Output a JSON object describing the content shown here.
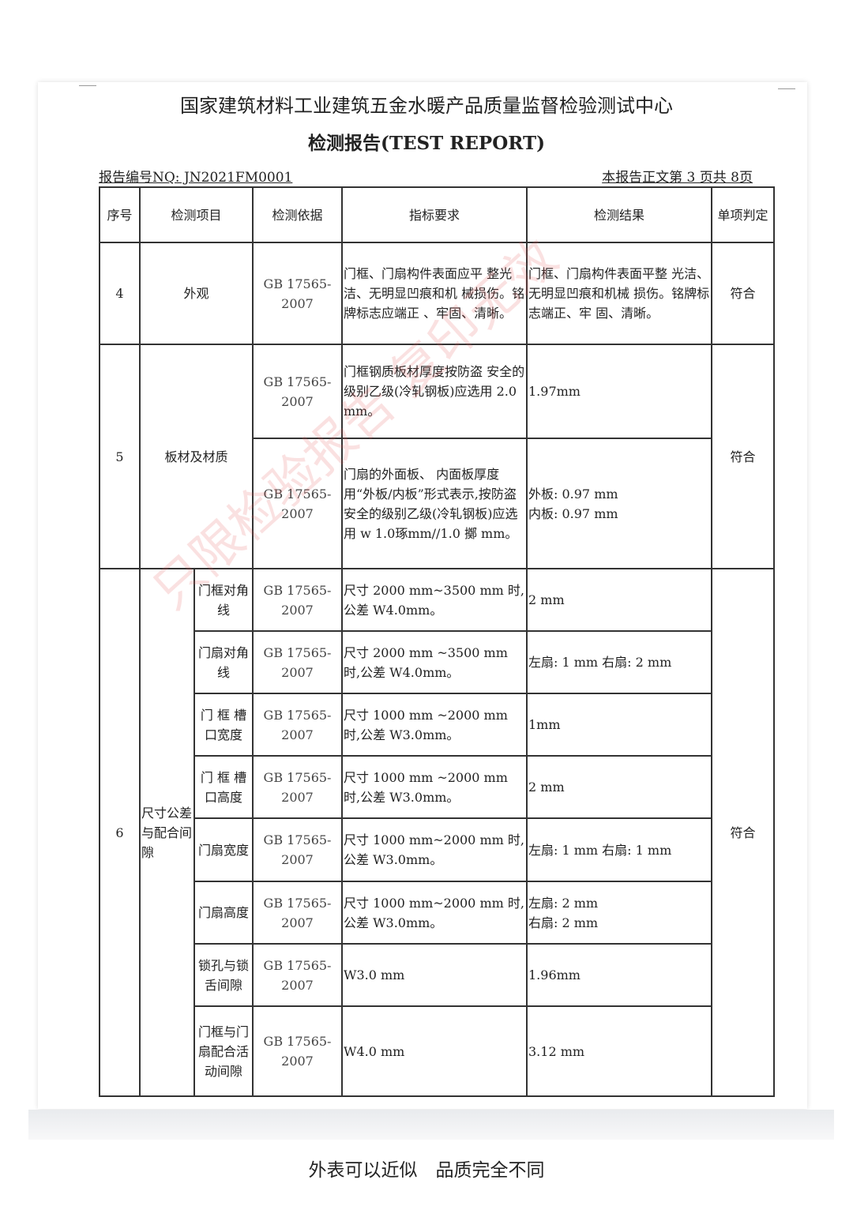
{
  "header": {
    "org": "国家建筑材料工业建筑五金水暖产品质量监督检验测试中心",
    "title": "检测报告(TEST REPORT)",
    "report_no": "报告编号NQ:  JN2021FM0001",
    "page_info": "本报告正文第 3 页共 8页"
  },
  "table": {
    "headers": [
      "序号",
      "检测项目",
      "检测依据",
      "指标要求",
      "检测结果",
      "单项判定"
    ],
    "std": "GB 17565-2007",
    "row4": {
      "no": "4",
      "item": "外观",
      "req": "门框、门扇构件表面应平 整光洁、无明显凹痕和机 械损伤。铭牌标志应端正 、牢固、清晰。",
      "result": "门框、门扇构件表面平整 光洁、无明显凹痕和机械 损伤。铭牌标志端正、牢 固、清晰。",
      "verdict": "符合"
    },
    "row5": {
      "no": "5",
      "item": "板材及材质",
      "verdict": "符合",
      "sub": [
        {
          "req": "门框钢质板材厚度按防盗 安全的级别乙级(冷轧钢板)应选用 2.0 mm。",
          "result": "1.97mm"
        },
        {
          "req": "门扇的外面板、 内面板厚度用“外板/内板”形式表示,按防盗安全的级别乙级(冷轧钢板)应选用 w 1.0琢mm//1.0 擲 mm。",
          "result": "外板: 0.97 mm\n内板: 0.97 mm"
        }
      ]
    },
    "row6": {
      "no": "6",
      "item": "尺寸公差与配合间隙",
      "verdict": "符合",
      "sub": [
        {
          "name": "门框对角线",
          "req": "尺寸 2000 mm~3500 mm 时,公差 W4.0mm。",
          "result": "2 mm"
        },
        {
          "name": "门扇对角线",
          "req": "尺寸 2000 mm ~3500 mm 时,公差 W4.0mm。",
          "result": "左扇: 1 mm 右扇: 2 mm"
        },
        {
          "name": "门 框 槽口宽度",
          "req": "尺寸 1000 mm ~2000 mm 时,公差 W3.0mm。",
          "result": "1mm"
        },
        {
          "name": "门 框 槽口高度",
          "req": "尺寸 1000 mm ~2000 mm 时,公差 W3.0mm。",
          "result": "2 mm"
        },
        {
          "name": "门扇宽度",
          "req": "尺寸 1000 mm~2000 mm 时,公差 W3.0mm。",
          "result": "左扇: 1 mm 右扇: 1 mm"
        },
        {
          "name": "门扇高度",
          "req": "尺寸 1000 mm~2000 mm 时,公差 W3.0mm。",
          "result": "左扇: 2 mm\n右扇: 2 mm"
        },
        {
          "name": "锁孔与锁舌间隙",
          "req": "W3.0 mm",
          "result": "1.96mm"
        },
        {
          "name": "门框与门扇配合活动间隙",
          "req": "W4.0 mm",
          "result": "3.12 mm"
        }
      ]
    }
  },
  "watermark": "只限检验报告 复印无效",
  "caption": "外表可以近似　品质完全不同"
}
